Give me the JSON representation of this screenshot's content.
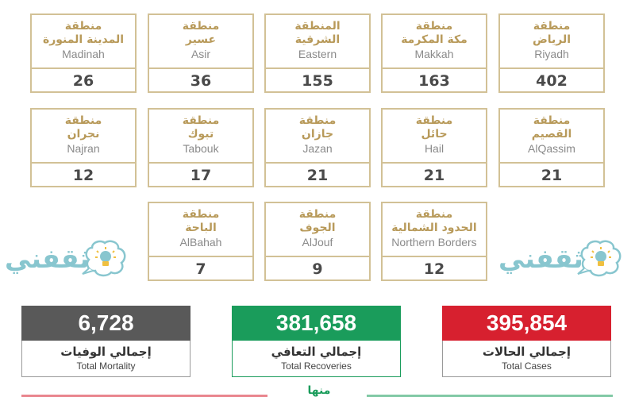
{
  "regions": [
    {
      "ar1": "منطقة",
      "ar2": "الرياض",
      "en": "Riyadh",
      "value": "402"
    },
    {
      "ar1": "منطقة",
      "ar2": "مكة المكرمة",
      "en": "Makkah",
      "value": "163"
    },
    {
      "ar1": "المنطقة",
      "ar2": "الشرقية",
      "en": "Eastern",
      "value": "155"
    },
    {
      "ar1": "منطقة",
      "ar2": "عسير",
      "en": "Asir",
      "value": "36"
    },
    {
      "ar1": "منطقة",
      "ar2": "المدينة المنورة",
      "en": "Madinah",
      "value": "26"
    },
    {
      "ar1": "منطقة",
      "ar2": "القصيم",
      "en": "AlQassim",
      "value": "21"
    },
    {
      "ar1": "منطقة",
      "ar2": "حائل",
      "en": "Hail",
      "value": "21"
    },
    {
      "ar1": "منطقة",
      "ar2": "جازان",
      "en": "Jazan",
      "value": "21"
    },
    {
      "ar1": "منطقة",
      "ar2": "تبوك",
      "en": "Tabouk",
      "value": "17"
    },
    {
      "ar1": "منطقة",
      "ar2": "نجران",
      "en": "Najran",
      "value": "12"
    },
    {
      "ar1": "منطقة",
      "ar2": "الحدود الشمالية",
      "en": "Northern Borders",
      "value": "12"
    },
    {
      "ar1": "منطقة",
      "ar2": "الجوف",
      "en": "AlJouf",
      "value": "9"
    },
    {
      "ar1": "منطقة",
      "ar2": "الباحة",
      "en": "AlBahah",
      "value": "7"
    }
  ],
  "logo": {
    "text": "ثقفني"
  },
  "totals": {
    "cases": {
      "value": "395,854",
      "label_ar": "إجمالي الحالات",
      "label_en": "Total Cases"
    },
    "recoveries": {
      "value": "381,658",
      "label_ar": "إجمالي التعافي",
      "label_en": "Total Recoveries"
    },
    "mortality": {
      "value": "6,728",
      "label_ar": "إجمالي الوفيات",
      "label_en": "Total Mortality"
    }
  },
  "footer": {
    "partial_text": "منها"
  },
  "colors": {
    "border": "#d2c196",
    "region_arabic": "#b89a5a",
    "cases": "#d7202f",
    "recoveries": "#1a9c5b",
    "mortality": "#595959",
    "logo": "#88c6cf"
  }
}
